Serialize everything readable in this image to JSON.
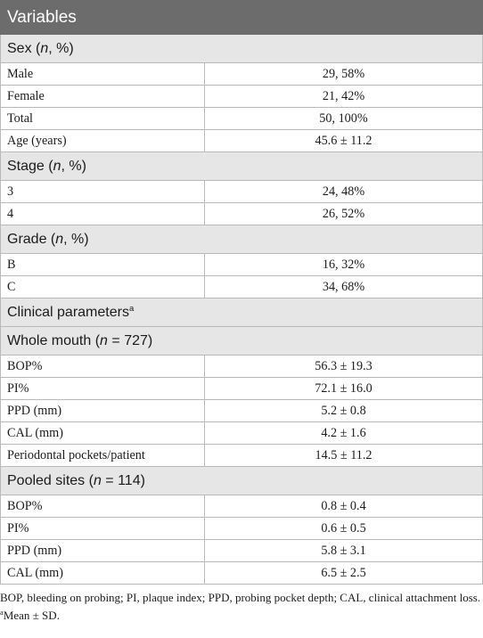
{
  "header": "Variables",
  "sex": {
    "heading_pre": "Sex (",
    "heading_ital": "n",
    "heading_post": ", %)",
    "rows": [
      {
        "label": "Male",
        "value": "29, 58%"
      },
      {
        "label": "Female",
        "value": "21, 42%"
      },
      {
        "label": "Total",
        "value": "50, 100%"
      },
      {
        "label": "Age (years)",
        "value": "45.6 ± 11.2"
      }
    ]
  },
  "stage": {
    "heading_pre": "Stage (",
    "heading_ital": "n",
    "heading_post": ", %)",
    "rows": [
      {
        "label": "3",
        "value": "24, 48%"
      },
      {
        "label": "4",
        "value": "26, 52%"
      }
    ]
  },
  "grade": {
    "heading_pre": "Grade (",
    "heading_ital": "n",
    "heading_post": ", %)",
    "rows": [
      {
        "label": "B",
        "value": "16, 32%"
      },
      {
        "label": "C",
        "value": "34, 68%"
      }
    ]
  },
  "clinical": {
    "heading": "Clinical parameters",
    "sup": "a"
  },
  "whole_mouth": {
    "heading_pre": "Whole mouth (",
    "heading_ital": "n",
    "heading_post": " = 727)",
    "rows": [
      {
        "label": "BOP%",
        "value": "56.3 ± 19.3"
      },
      {
        "label": "PI%",
        "value": "72.1 ± 16.0"
      },
      {
        "label": "PPD (mm)",
        "value": "5.2 ± 0.8"
      },
      {
        "label": "CAL (mm)",
        "value": "4.2 ± 1.6"
      },
      {
        "label": "Periodontal pockets/patient",
        "value": "14.5 ± 11.2"
      }
    ]
  },
  "pooled": {
    "heading_pre": "Pooled sites (",
    "heading_ital": "n",
    "heading_post": " = 114)",
    "rows": [
      {
        "label": "BOP%",
        "value": "0.8 ± 0.4"
      },
      {
        "label": "PI%",
        "value": "0.6 ± 0.5"
      },
      {
        "label": "PPD (mm)",
        "value": "5.8 ± 3.1"
      },
      {
        "label": "CAL (mm)",
        "value": "6.5 ± 2.5"
      }
    ]
  },
  "footnotes": {
    "abbrev": "BOP, bleeding on probing; PI, plaque index; PPD, probing pocket depth; CAL, clinical attachment loss.",
    "sup": "a",
    "mean_sd": "Mean ± SD."
  }
}
